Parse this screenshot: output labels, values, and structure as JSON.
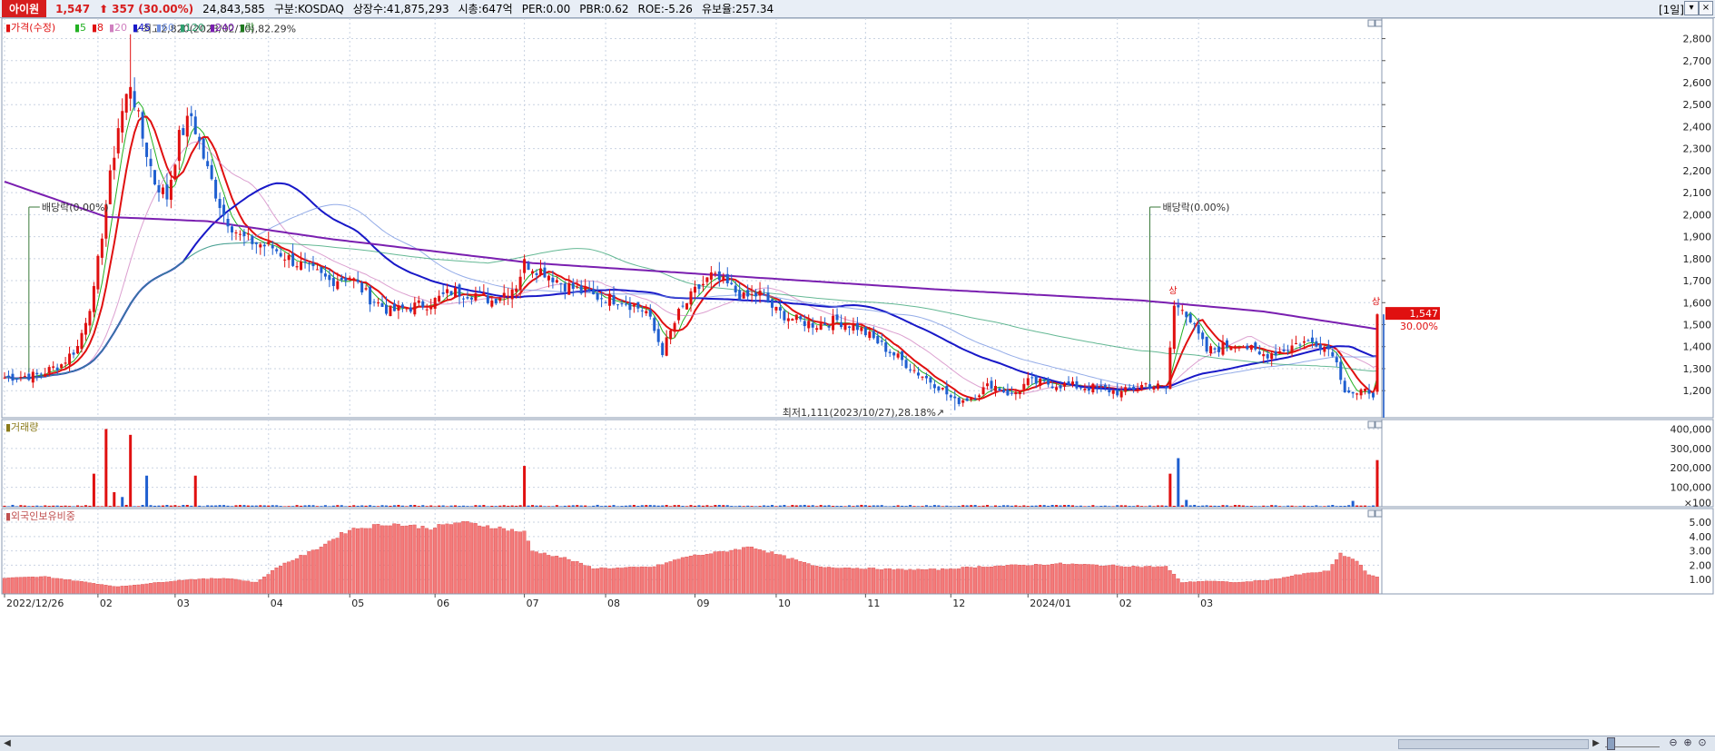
{
  "stock": {
    "name": "아이원",
    "price": "1,547",
    "change_arrow": "⬆",
    "change": "357",
    "change_pct": "(30.00%)",
    "volume": "24,843,585",
    "market": "구분:KOSDAQ",
    "listed": "상장수:41,875,293",
    "mcap": "시총:647억",
    "per": "PER:0.00",
    "pbr": "PBR:0.62",
    "roe": "ROE:-5.26",
    "float": "유보율:257.34"
  },
  "period": "[1일]",
  "legend": {
    "price_title": "가격(수정)",
    "ma": [
      {
        "label": "5",
        "color": "#22b022"
      },
      {
        "label": "8",
        "color": "#e01010"
      },
      {
        "label": "20",
        "color": "#d080c0"
      },
      {
        "label": "45",
        "color": "#1818c8"
      },
      {
        "label": "60",
        "color": "#7090e0"
      },
      {
        "label": "120",
        "color": "#30a070"
      },
      {
        "label": "240",
        "color": "#7a1fb0"
      }
    ],
    "exdiv": "락",
    "volume_title": "거래량",
    "foreign_title": "외국인보유비중"
  },
  "annotations": {
    "high": "최고2,820(2023/02/10),82.29%",
    "low": "최저1,111(2023/10/27),28.18%",
    "div1": "배당락(0.00%)",
    "div2": "배당락(0.00%)",
    "limit_up": "상",
    "price_tag": "1,547",
    "pct_tag": "30.00%"
  },
  "x_labels": [
    "2022/12/26",
    "02",
    "03",
    "04",
    "05",
    "06",
    "07",
    "08",
    "09",
    "10",
    "11",
    "12",
    "2024/01",
    "02",
    "03"
  ],
  "colors": {
    "up": "#e01010",
    "down": "#1f5fd0",
    "grid": "#c9d3e2",
    "foreign_bar": "#f47a7a",
    "frame": "#8a99b0"
  },
  "chart_data": [
    {
      "type": "candlestick",
      "title": "가격(수정)",
      "y_ticks": [
        "2,800",
        "2,700",
        "2,600",
        "2,500",
        "2,400",
        "2,300",
        "2,200",
        "2,100",
        "2,000",
        "1,900",
        "1,800",
        "1,700",
        "1,600",
        "1,500",
        "1,400",
        "1,300",
        "1,200"
      ],
      "ylim": [
        1110,
        2860
      ],
      "x_categories": [
        "2022/12/26",
        "02",
        "03",
        "04",
        "05",
        "06",
        "07",
        "08",
        "09",
        "10",
        "11",
        "12",
        "2024/01",
        "02",
        "03"
      ],
      "anchors": [
        {
          "d": 0,
          "close": 1260
        },
        {
          "d": 8,
          "close": 1270
        },
        {
          "d": 14,
          "close": 1320
        },
        {
          "d": 18,
          "close": 1400
        },
        {
          "d": 22,
          "close": 1650
        },
        {
          "d": 25,
          "close": 2050
        },
        {
          "d": 28,
          "close": 2400
        },
        {
          "d": 31,
          "close": 2600
        },
        {
          "d": 34,
          "close": 2350
        },
        {
          "d": 37,
          "close": 2150
        },
        {
          "d": 40,
          "close": 2080
        },
        {
          "d": 43,
          "close": 2350
        },
        {
          "d": 46,
          "close": 2450
        },
        {
          "d": 50,
          "close": 2200
        },
        {
          "d": 54,
          "close": 2000
        },
        {
          "d": 58,
          "close": 1900
        },
        {
          "d": 62,
          "close": 1870
        },
        {
          "d": 66,
          "close": 1850
        },
        {
          "d": 70,
          "close": 1800
        },
        {
          "d": 75,
          "close": 1750
        },
        {
          "d": 80,
          "close": 1700
        },
        {
          "d": 85,
          "close": 1720
        },
        {
          "d": 90,
          "close": 1620
        },
        {
          "d": 95,
          "close": 1560
        },
        {
          "d": 100,
          "close": 1580
        },
        {
          "d": 105,
          "close": 1600
        },
        {
          "d": 110,
          "close": 1650
        },
        {
          "d": 116,
          "close": 1640
        },
        {
          "d": 120,
          "close": 1610
        },
        {
          "d": 126,
          "close": 1680
        },
        {
          "d": 128,
          "close": 1780
        },
        {
          "d": 133,
          "close": 1740
        },
        {
          "d": 138,
          "close": 1680
        },
        {
          "d": 145,
          "close": 1630
        },
        {
          "d": 152,
          "close": 1610
        },
        {
          "d": 158,
          "close": 1560
        },
        {
          "d": 162,
          "close": 1380
        },
        {
          "d": 166,
          "close": 1550
        },
        {
          "d": 170,
          "close": 1650
        },
        {
          "d": 174,
          "close": 1720
        },
        {
          "d": 178,
          "close": 1680
        },
        {
          "d": 182,
          "close": 1620
        },
        {
          "d": 186,
          "close": 1640
        },
        {
          "d": 190,
          "close": 1560
        },
        {
          "d": 195,
          "close": 1520
        },
        {
          "d": 200,
          "close": 1500
        },
        {
          "d": 205,
          "close": 1520
        },
        {
          "d": 210,
          "close": 1490
        },
        {
          "d": 215,
          "close": 1420
        },
        {
          "d": 220,
          "close": 1350
        },
        {
          "d": 225,
          "close": 1280
        },
        {
          "d": 230,
          "close": 1220
        },
        {
          "d": 234,
          "close": 1150
        },
        {
          "d": 238,
          "close": 1170
        },
        {
          "d": 243,
          "close": 1230
        },
        {
          "d": 248,
          "close": 1180
        },
        {
          "d": 252,
          "close": 1240
        },
        {
          "d": 258,
          "close": 1230
        },
        {
          "d": 264,
          "close": 1220
        },
        {
          "d": 270,
          "close": 1210
        },
        {
          "d": 275,
          "close": 1190
        },
        {
          "d": 281,
          "close": 1230
        },
        {
          "d": 286,
          "close": 1210
        },
        {
          "d": 288,
          "close": 1580
        },
        {
          "d": 290,
          "close": 1590
        },
        {
          "d": 293,
          "close": 1480
        },
        {
          "d": 296,
          "close": 1380
        },
        {
          "d": 300,
          "close": 1400
        },
        {
          "d": 304,
          "close": 1420
        },
        {
          "d": 309,
          "close": 1360
        },
        {
          "d": 314,
          "close": 1380
        },
        {
          "d": 319,
          "close": 1420
        },
        {
          "d": 323,
          "close": 1420
        },
        {
          "d": 327,
          "close": 1380
        },
        {
          "d": 330,
          "close": 1210
        },
        {
          "d": 333,
          "close": 1180
        },
        {
          "d": 336,
          "close": 1200
        },
        {
          "d": 337,
          "close": 1190
        },
        {
          "d": 338,
          "close": 1547
        }
      ],
      "moving_averages": [
        {
          "name": "5",
          "color": "#22b022"
        },
        {
          "name": "8",
          "color": "#e01010"
        },
        {
          "name": "20",
          "color": "#d080c0"
        },
        {
          "name": "45",
          "color": "#1818c8"
        },
        {
          "name": "60",
          "color": "#7090e0"
        },
        {
          "name": "120",
          "color": "#30a070"
        },
        {
          "name": "240",
          "color": "#7a1fb0"
        }
      ],
      "ma240_anchors": [
        {
          "d": 0,
          "v": 2150
        },
        {
          "d": 25,
          "v": 1990
        },
        {
          "d": 50,
          "v": 1970
        },
        {
          "d": 80,
          "v": 1890
        },
        {
          "d": 130,
          "v": 1780
        },
        {
          "d": 180,
          "v": 1720
        },
        {
          "d": 230,
          "v": 1660
        },
        {
          "d": 280,
          "v": 1610
        },
        {
          "d": 310,
          "v": 1560
        },
        {
          "d": 338,
          "v": 1480
        }
      ],
      "high": {
        "value": 2820,
        "date": "2023/02/10"
      },
      "low": {
        "value": 1111,
        "date": "2023/10/27"
      },
      "last": 1547
    },
    {
      "type": "bar",
      "title": "거래량",
      "y_ticks": [
        "400,000",
        "300,000",
        "200,000",
        "100,000"
      ],
      "ylim": [
        0,
        430000
      ],
      "spikes": [
        {
          "d": 22,
          "v": 170000,
          "up": true
        },
        {
          "d": 25,
          "v": 400000,
          "up": true
        },
        {
          "d": 27,
          "v": 75000,
          "up": true
        },
        {
          "d": 29,
          "v": 50000,
          "up": false
        },
        {
          "d": 31,
          "v": 370000,
          "up": true
        },
        {
          "d": 35,
          "v": 160000,
          "up": false
        },
        {
          "d": 47,
          "v": 160000,
          "up": true
        },
        {
          "d": 128,
          "v": 210000,
          "up": true
        },
        {
          "d": 287,
          "v": 170000,
          "up": true
        },
        {
          "d": 289,
          "v": 250000,
          "up": false
        },
        {
          "d": 291,
          "v": 35000,
          "up": false
        },
        {
          "d": 332,
          "v": 30000,
          "up": false
        },
        {
          "d": 338,
          "v": 240000,
          "up": true
        }
      ],
      "base": 6000
    },
    {
      "type": "bar",
      "title": "외국인보유비중",
      "y_ticks": [
        "5.00",
        "4.00",
        "3.00",
        "2.00",
        "1.00"
      ],
      "ylim": [
        0,
        5.7
      ],
      "anchors": [
        {
          "d": 0,
          "v": 1.1
        },
        {
          "d": 10,
          "v": 1.2
        },
        {
          "d": 18,
          "v": 0.9
        },
        {
          "d": 28,
          "v": 0.5
        },
        {
          "d": 38,
          "v": 0.8
        },
        {
          "d": 45,
          "v": 1.0
        },
        {
          "d": 55,
          "v": 1.1
        },
        {
          "d": 62,
          "v": 0.8
        },
        {
          "d": 68,
          "v": 2.0
        },
        {
          "d": 76,
          "v": 3.0
        },
        {
          "d": 85,
          "v": 4.5
        },
        {
          "d": 95,
          "v": 4.9
        },
        {
          "d": 105,
          "v": 4.6
        },
        {
          "d": 112,
          "v": 5.0
        },
        {
          "d": 120,
          "v": 4.7
        },
        {
          "d": 128,
          "v": 4.3
        },
        {
          "d": 130,
          "v": 3.0
        },
        {
          "d": 138,
          "v": 2.5
        },
        {
          "d": 145,
          "v": 1.8
        },
        {
          "d": 152,
          "v": 1.8
        },
        {
          "d": 160,
          "v": 1.9
        },
        {
          "d": 168,
          "v": 2.6
        },
        {
          "d": 176,
          "v": 2.9
        },
        {
          "d": 184,
          "v": 3.3
        },
        {
          "d": 192,
          "v": 2.6
        },
        {
          "d": 200,
          "v": 1.9
        },
        {
          "d": 210,
          "v": 1.8
        },
        {
          "d": 220,
          "v": 1.7
        },
        {
          "d": 230,
          "v": 1.7
        },
        {
          "d": 240,
          "v": 1.9
        },
        {
          "d": 250,
          "v": 2.0
        },
        {
          "d": 260,
          "v": 2.1
        },
        {
          "d": 270,
          "v": 2.0
        },
        {
          "d": 280,
          "v": 1.9
        },
        {
          "d": 286,
          "v": 1.9
        },
        {
          "d": 290,
          "v": 0.8
        },
        {
          "d": 296,
          "v": 0.9
        },
        {
          "d": 304,
          "v": 0.8
        },
        {
          "d": 312,
          "v": 1.0
        },
        {
          "d": 320,
          "v": 1.4
        },
        {
          "d": 326,
          "v": 1.6
        },
        {
          "d": 329,
          "v": 2.8
        },
        {
          "d": 333,
          "v": 2.3
        },
        {
          "d": 336,
          "v": 1.3
        },
        {
          "d": 338,
          "v": 1.2
        }
      ]
    }
  ]
}
